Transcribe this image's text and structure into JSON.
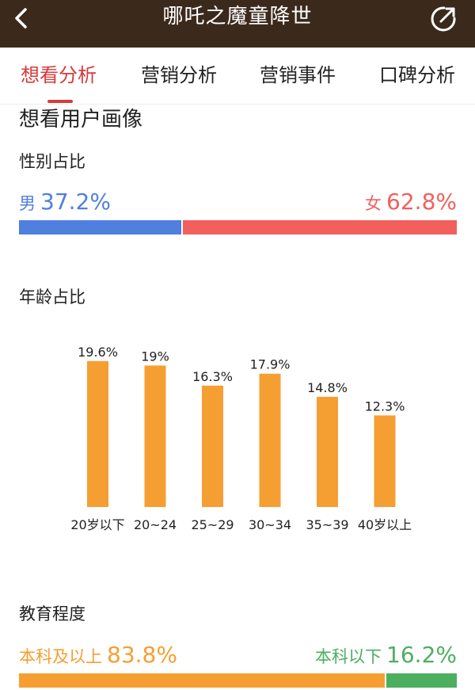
{
  "header": {
    "title": "哪吒之魔童降世",
    "back_icon": "chevron-left-icon",
    "share_icon": "share-icon",
    "background": "#3b2a1c"
  },
  "tabs": [
    {
      "label": "想看分析",
      "active": true
    },
    {
      "label": "营销分析",
      "active": false
    },
    {
      "label": "营销事件",
      "active": false
    },
    {
      "label": "口碑分析",
      "active": false
    }
  ],
  "section": {
    "title": "想看用户画像"
  },
  "gender": {
    "title": "性别占比",
    "male": {
      "label": "男",
      "value": "37.2%",
      "share": 37.2,
      "color": "#4f7fdf"
    },
    "female": {
      "label": "女",
      "value": "62.8%",
      "share": 62.8,
      "color": "#f25f5c"
    }
  },
  "age": {
    "title": "年龄占比",
    "bar_color": "#f59f33"
  },
  "education": {
    "title": "教育程度",
    "above": {
      "label": "本科及以上",
      "value": "83.8%",
      "share": 83.8,
      "color": "#f59f33"
    },
    "below": {
      "label": "本科以下",
      "value": "16.2%",
      "share": 16.2,
      "color": "#4caf60"
    }
  },
  "chart_data": {
    "type": "bar",
    "categories": [
      "20岁以下",
      "20~24",
      "25~29",
      "30~34",
      "35~39",
      "40岁以上"
    ],
    "values": [
      19.6,
      19,
      16.3,
      17.9,
      14.8,
      12.3
    ],
    "value_labels": [
      "19.6%",
      "19%",
      "16.3%",
      "17.9%",
      "14.8%",
      "12.3%"
    ],
    "title": "年龄占比",
    "xlabel": "",
    "ylabel": "",
    "unit": "%",
    "ylim": [
      0,
      20
    ],
    "grid": false,
    "legend": "none"
  }
}
